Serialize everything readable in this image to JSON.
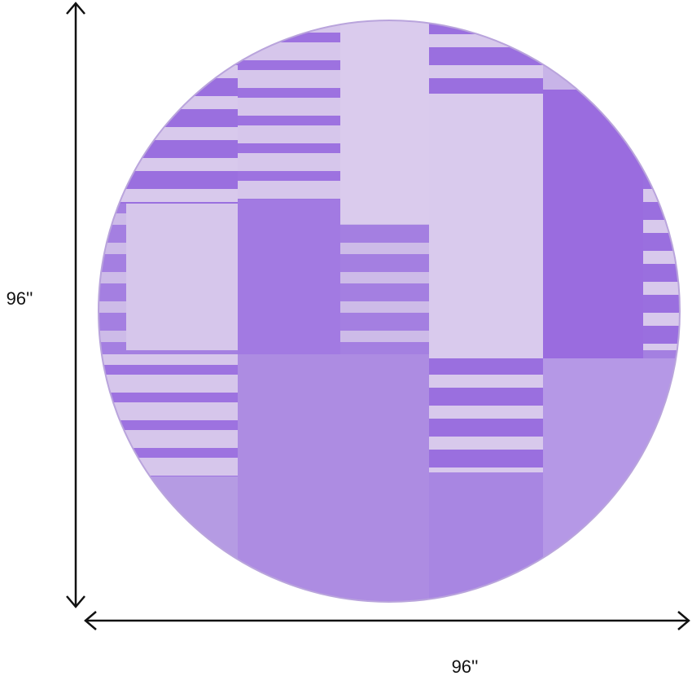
{
  "dimensions": {
    "height": "96''",
    "width": "96''"
  }
}
